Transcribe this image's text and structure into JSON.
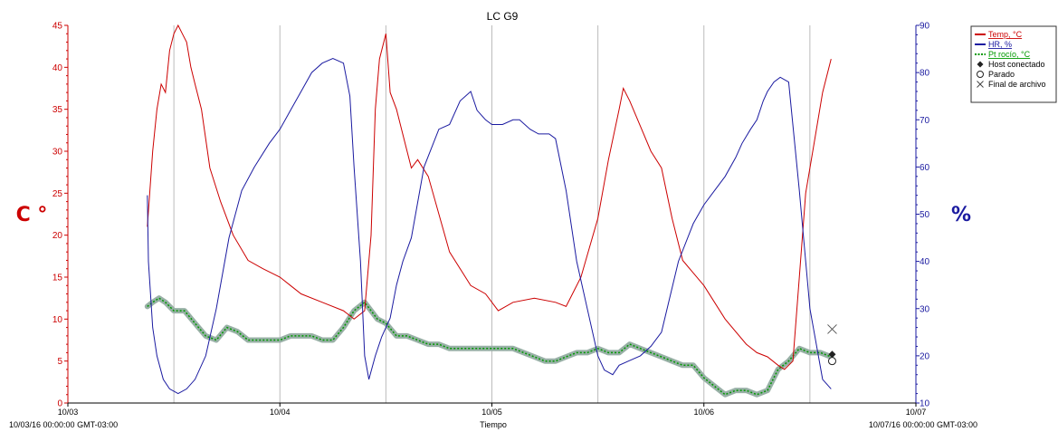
{
  "chart_data": {
    "type": "line",
    "title": "LC G9",
    "xlabel": "Tiempo",
    "ylabel_left": "C °",
    "ylabel_right": "%",
    "x_start_label": "10/03/16 00:00:00 GMT-03:00",
    "x_end_label": "10/07/16 00:00:00 GMT-03:00",
    "x_ticks": [
      "10/03",
      "10/04",
      "10/05",
      "10/06",
      "10/07"
    ],
    "xlim": [
      0,
      4
    ],
    "ylim_left": [
      0,
      45
    ],
    "ylim_right": [
      10,
      90
    ],
    "left_ticks": [
      0,
      5,
      10,
      15,
      20,
      25,
      30,
      35,
      40,
      45
    ],
    "right_ticks": [
      10,
      20,
      30,
      40,
      50,
      60,
      70,
      80,
      90
    ],
    "grid": "vertical",
    "legend_position": "top-right",
    "series": [
      {
        "name": "Temp, °C",
        "axis": "left",
        "color": "#cc0000",
        "x": [
          0.375,
          0.4,
          0.42,
          0.44,
          0.46,
          0.48,
          0.5,
          0.52,
          0.54,
          0.56,
          0.58,
          0.6,
          0.63,
          0.67,
          0.72,
          0.78,
          0.85,
          0.92,
          1.0,
          1.05,
          1.1,
          1.2,
          1.3,
          1.35,
          1.4,
          1.43,
          1.45,
          1.47,
          1.5,
          1.52,
          1.55,
          1.6,
          1.62,
          1.65,
          1.7,
          1.8,
          1.9,
          1.97,
          2.03,
          2.1,
          2.2,
          2.3,
          2.35,
          2.42,
          2.5,
          2.55,
          2.6,
          2.62,
          2.65,
          2.7,
          2.75,
          2.8,
          2.85,
          2.9,
          3.0,
          3.1,
          3.2,
          3.25,
          3.3,
          3.35,
          3.38,
          3.42,
          3.45,
          3.48,
          3.52,
          3.56,
          3.6
        ],
        "y": [
          21,
          30,
          35,
          38,
          37,
          42,
          44,
          45,
          44,
          43,
          40,
          38,
          35,
          28,
          24,
          20,
          17,
          16,
          15,
          14,
          13,
          12,
          11,
          10,
          11,
          20,
          35,
          41,
          44,
          37,
          35,
          30,
          28,
          29,
          27,
          18,
          14,
          13,
          11,
          12,
          12.5,
          12,
          11.5,
          15,
          22,
          29,
          35,
          37.5,
          36,
          33,
          30,
          28,
          22,
          17,
          14,
          10,
          7,
          6,
          5.5,
          4.5,
          4,
          5,
          15,
          25,
          31,
          37,
          41
        ]
      },
      {
        "name": "HR, %",
        "axis": "right",
        "color": "#1a1aa0",
        "x": [
          0.375,
          0.38,
          0.4,
          0.42,
          0.45,
          0.48,
          0.52,
          0.56,
          0.6,
          0.65,
          0.7,
          0.76,
          0.82,
          0.88,
          0.95,
          1.0,
          1.05,
          1.1,
          1.15,
          1.2,
          1.25,
          1.3,
          1.33,
          1.35,
          1.38,
          1.4,
          1.42,
          1.45,
          1.48,
          1.52,
          1.55,
          1.58,
          1.62,
          1.68,
          1.75,
          1.8,
          1.85,
          1.9,
          1.93,
          1.97,
          2.0,
          2.05,
          2.1,
          2.13,
          2.18,
          2.22,
          2.27,
          2.3,
          2.35,
          2.4,
          2.45,
          2.5,
          2.53,
          2.57,
          2.6,
          2.65,
          2.7,
          2.75,
          2.8,
          2.88,
          2.95,
          3.0,
          3.05,
          3.1,
          3.15,
          3.18,
          3.22,
          3.25,
          3.28,
          3.3,
          3.33,
          3.36,
          3.4,
          3.45,
          3.5,
          3.56,
          3.6
        ],
        "y": [
          54,
          40,
          26,
          20,
          15,
          13,
          12,
          13,
          15,
          20,
          30,
          45,
          55,
          60,
          65,
          68,
          72,
          76,
          80,
          82,
          83,
          82,
          75,
          60,
          40,
          20,
          15,
          20,
          24,
          28,
          35,
          40,
          45,
          60,
          68,
          69,
          74,
          76,
          72,
          70,
          69,
          69,
          70,
          70,
          68,
          67,
          67,
          66,
          55,
          40,
          30,
          20,
          17,
          16,
          18,
          19,
          20,
          22,
          25,
          40,
          48,
          52,
          55,
          58,
          62,
          65,
          68,
          70,
          74,
          76,
          78,
          79,
          78,
          55,
          30,
          15,
          13
        ]
      },
      {
        "name": "Pt rocío, °C",
        "axis": "left",
        "color": "#009900",
        "x": [
          0.375,
          0.4,
          0.43,
          0.46,
          0.5,
          0.55,
          0.6,
          0.65,
          0.7,
          0.75,
          0.8,
          0.85,
          0.9,
          0.95,
          1.0,
          1.05,
          1.1,
          1.15,
          1.2,
          1.25,
          1.3,
          1.35,
          1.4,
          1.43,
          1.46,
          1.5,
          1.55,
          1.6,
          1.65,
          1.7,
          1.75,
          1.8,
          1.9,
          2.0,
          2.1,
          2.2,
          2.25,
          2.3,
          2.35,
          2.4,
          2.45,
          2.5,
          2.55,
          2.6,
          2.65,
          2.7,
          2.75,
          2.8,
          2.85,
          2.9,
          2.95,
          3.0,
          3.05,
          3.1,
          3.15,
          3.2,
          3.25,
          3.3,
          3.35,
          3.4,
          3.45,
          3.5,
          3.55,
          3.6
        ],
        "y": [
          11.5,
          12,
          12.5,
          12,
          11,
          11,
          9.5,
          8,
          7.5,
          9,
          8.5,
          7.5,
          7.5,
          7.5,
          7.5,
          8,
          8,
          8,
          7.5,
          7.5,
          9,
          11,
          12,
          11,
          10,
          9.5,
          8,
          8,
          7.5,
          7,
          7,
          6.5,
          6.5,
          6.5,
          6.5,
          5.5,
          5,
          5,
          5.5,
          6,
          6,
          6.5,
          6,
          6,
          7,
          6.5,
          6,
          5.5,
          5,
          4.5,
          4.5,
          3,
          2,
          1,
          1.5,
          1.5,
          1,
          1.5,
          4,
          5,
          6.5,
          6,
          6,
          5.5
        ]
      }
    ],
    "markers": [
      {
        "name": "Host conectado",
        "symbol": "diamond",
        "axis": "left",
        "x": 3.605,
        "y": 5.8
      },
      {
        "name": "Parado",
        "symbol": "circle",
        "axis": "left",
        "x": 3.605,
        "y": 5
      },
      {
        "name": "Final de archivo",
        "symbol": "cross",
        "axis": "left",
        "x": 3.605,
        "y": 8.8
      }
    ]
  },
  "legend": {
    "items": [
      {
        "label": "Temp, °C",
        "color": "#cc0000",
        "style": "solid"
      },
      {
        "label": "HR, %",
        "color": "#1a1aa0",
        "style": "solid"
      },
      {
        "label": "Pt rocío, °C",
        "color": "#009900",
        "style": "dotted"
      },
      {
        "label": "Host conectado",
        "color": "#000000",
        "style": "diamond"
      },
      {
        "label": "Parado",
        "color": "#000000",
        "style": "circle"
      },
      {
        "label": "Final de archivo",
        "color": "#000000",
        "style": "cross"
      }
    ]
  }
}
